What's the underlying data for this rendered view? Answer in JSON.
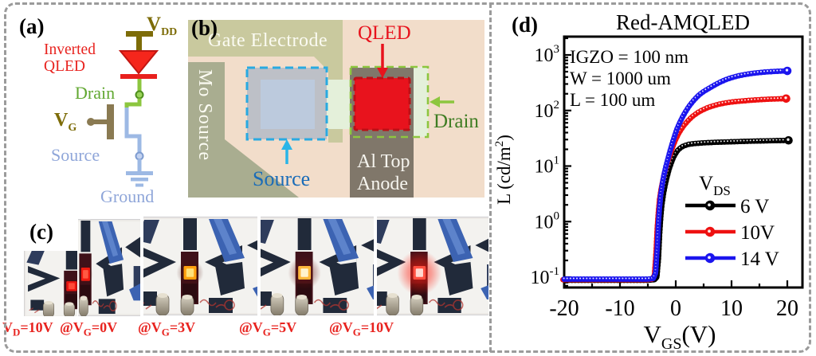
{
  "panels": {
    "a": {
      "label": "(a)",
      "caption_line1": "Inverted",
      "caption_line2": "QLED",
      "vdd_main": "V",
      "vdd_sub": "DD",
      "drain_label": "Drain",
      "vg_main": "V",
      "vg_sub": "G",
      "source_label": "Source",
      "ground_label": "Ground"
    },
    "b": {
      "label": "(b)",
      "gate_electrode": "Gate Electrode",
      "mo_source": "Mo Source",
      "source_label": "Source",
      "qled_label": "QLED",
      "drain_label": "Drain",
      "anode_line1": "Al Top",
      "anode_line2": "Anode"
    },
    "c": {
      "label": "(c)",
      "captions": [
        {
          "x": 3,
          "pre": "V",
          "sub": "D",
          "post": "=10V",
          "text": "V_D=10V"
        },
        {
          "x": 75,
          "pre": "@V",
          "sub": "G",
          "post": "=0V",
          "text": "@V_G=0V"
        },
        {
          "x": 173,
          "pre": "@V",
          "sub": "G",
          "post": "=3V",
          "text": "@V_G=3V"
        },
        {
          "x": 300,
          "pre": "@V",
          "sub": "G",
          "post": "=5V",
          "text": "@V_G=5V"
        },
        {
          "x": 413,
          "pre": "@V",
          "sub": "G",
          "post": "=10V",
          "text": "@V_G=10V"
        }
      ],
      "photos": [
        {
          "name": "device-vg0-overview",
          "led": {
            "core": "#e81410",
            "bright": "#ff4a38",
            "halo": "#500a06",
            "haloR": 7,
            "haloOp": 0.45
          }
        },
        {
          "name": "device-vg0",
          "led": {
            "core": "#f01b10",
            "bright": "#ff5a42",
            "halo": "#4a0d08",
            "haloR": 7,
            "haloOp": 0.4
          }
        },
        {
          "name": "device-vg3",
          "led": {
            "core": "#ffa00e",
            "bright": "#ffe27a",
            "halo": "#4c0f06",
            "haloR": 9,
            "haloOp": 0.55
          }
        },
        {
          "name": "device-vg5",
          "led": {
            "core": "#ffb73c",
            "bright": "#fff3cf",
            "halo": "#6b1410",
            "haloR": 11,
            "haloOp": 0.6
          }
        },
        {
          "name": "device-vg10",
          "led": {
            "core": "#ff5040",
            "bright": "#ffd9d0",
            "halo": "#ff1d0e",
            "haloR": 15,
            "haloOp": 0.7
          }
        }
      ]
    },
    "d": {
      "label": "(d)"
    }
  },
  "colors": {
    "accent_red": "#e8231f",
    "olive": "#7d6c08",
    "gate_bar_olive": "#8a7a52",
    "wire_green": "#8cc63f",
    "drain_green_text": "#62a832",
    "light_blue_wire": "#9db9e4",
    "light_blue_text": "#8fa6d9",
    "micrograph_bg": "#f2ddca",
    "micrograph_olive": "#c9c99e",
    "micrograph_mo": "#a9ad90",
    "cyan_dash": "#29aae1",
    "source_blue_text": "#1a6cb8",
    "qled_red": "#e8131d",
    "green_dash": "#8dc63f",
    "drain_b_text": "#3f7d23",
    "anode_brown": "#80776a",
    "border_gray": "#9b9b9b"
  },
  "chart_data": {
    "type": "line",
    "title": "Red-AMQLED",
    "xlabel": {
      "pre": "V",
      "sub": "GS",
      "post": "(V)",
      "text": "V_GS(V)"
    },
    "ylabel": {
      "pre": "L (cd/m",
      "sup": "2",
      "post": ")",
      "text": "L (cd/m^2)"
    },
    "x_axis": {
      "min": -20,
      "max": 22.7,
      "major_ticks": [
        -20,
        -10,
        0,
        10,
        20
      ],
      "minor_ticks": [
        -15,
        -5,
        5,
        15
      ]
    },
    "y_axis": {
      "log": true,
      "min_exp": -1.19,
      "max_exp": 3.33,
      "tick_exponents": [
        3,
        2,
        1,
        0,
        -1
      ],
      "tick_base": "10"
    },
    "annotations": [
      "IGZO = 100 nm",
      "W = 1000 um",
      "L = 100 um"
    ],
    "legend": {
      "title_pre": "V",
      "title_sub": "DS",
      "position": "inside-right"
    },
    "grid": false,
    "series": [
      {
        "name": "6 V",
        "vds": 6,
        "color": "#000000",
        "points": [
          [
            -20,
            0.088
          ],
          [
            -18,
            0.088
          ],
          [
            -16,
            0.088
          ],
          [
            -14,
            0.088
          ],
          [
            -12,
            0.088
          ],
          [
            -10,
            0.088
          ],
          [
            -8,
            0.088
          ],
          [
            -6,
            0.088
          ],
          [
            -5,
            0.088
          ],
          [
            -4,
            0.09
          ],
          [
            -3.6,
            0.1
          ],
          [
            -3.3,
            0.22
          ],
          [
            -3.1,
            0.6
          ],
          [
            -2.9,
            1.2
          ],
          [
            -2.7,
            2.0
          ],
          [
            -2.4,
            3.2
          ],
          [
            -2.1,
            4.6
          ],
          [
            -1.8,
            6.2
          ],
          [
            -1.4,
            8.8
          ],
          [
            -1,
            11.5
          ],
          [
            -0.6,
            14.5
          ],
          [
            -0.2,
            17
          ],
          [
            0.2,
            19.5
          ],
          [
            0.7,
            21.5
          ],
          [
            1.2,
            23
          ],
          [
            2,
            24.5
          ],
          [
            3,
            25.3
          ],
          [
            4,
            25.8
          ],
          [
            5,
            26.2
          ],
          [
            7,
            26.8
          ],
          [
            9,
            27.2
          ],
          [
            11,
            27.6
          ],
          [
            13,
            28
          ],
          [
            15,
            28.3
          ],
          [
            17,
            28.6
          ],
          [
            20,
            29
          ]
        ]
      },
      {
        "name": "10V",
        "vds": 10,
        "color": "#ee1111",
        "points": [
          [
            -20,
            0.09
          ],
          [
            -18,
            0.09
          ],
          [
            -16,
            0.09
          ],
          [
            -14,
            0.09
          ],
          [
            -12,
            0.09
          ],
          [
            -10,
            0.09
          ],
          [
            -8,
            0.09
          ],
          [
            -6,
            0.09
          ],
          [
            -5,
            0.09
          ],
          [
            -4,
            0.092
          ],
          [
            -3.6,
            0.11
          ],
          [
            -3.3,
            0.3
          ],
          [
            -3.1,
            0.8
          ],
          [
            -2.9,
            1.5
          ],
          [
            -2.7,
            2.5
          ],
          [
            -2.4,
            3.9
          ],
          [
            -2.1,
            5.5
          ],
          [
            -1.8,
            7.5
          ],
          [
            -1.4,
            10.5
          ],
          [
            -1,
            14
          ],
          [
            -0.6,
            18.5
          ],
          [
            -0.2,
            24
          ],
          [
            0.2,
            30
          ],
          [
            0.7,
            38
          ],
          [
            1.2,
            46
          ],
          [
            1.7,
            54
          ],
          [
            2.2,
            62
          ],
          [
            2.7,
            70
          ],
          [
            3.2,
            78
          ],
          [
            3.7,
            85
          ],
          [
            4.2,
            92
          ],
          [
            5,
            102
          ],
          [
            6,
            113
          ],
          [
            7,
            122
          ],
          [
            8,
            130
          ],
          [
            9,
            136
          ],
          [
            10,
            141
          ],
          [
            11,
            145
          ],
          [
            12,
            148
          ],
          [
            13,
            151
          ],
          [
            14,
            154
          ],
          [
            15,
            156
          ],
          [
            16,
            158
          ],
          [
            17,
            160
          ],
          [
            18,
            161
          ],
          [
            19,
            162.5
          ],
          [
            20,
            164
          ]
        ]
      },
      {
        "name": "14 V",
        "vds": 14,
        "color": "#1b15ee",
        "points": [
          [
            -20,
            0.092
          ],
          [
            -18,
            0.092
          ],
          [
            -16,
            0.092
          ],
          [
            -14,
            0.092
          ],
          [
            -12,
            0.092
          ],
          [
            -10,
            0.092
          ],
          [
            -8,
            0.092
          ],
          [
            -6,
            0.092
          ],
          [
            -5,
            0.092
          ],
          [
            -4,
            0.095
          ],
          [
            -3.6,
            0.12
          ],
          [
            -3.3,
            0.35
          ],
          [
            -3.1,
            0.95
          ],
          [
            -2.9,
            1.8
          ],
          [
            -2.7,
            3.0
          ],
          [
            -2.4,
            4.8
          ],
          [
            -2.1,
            7
          ],
          [
            -1.8,
            9.5
          ],
          [
            -1.4,
            13.5
          ],
          [
            -1,
            19
          ],
          [
            -0.6,
            26
          ],
          [
            -0.2,
            35
          ],
          [
            0.2,
            46
          ],
          [
            0.7,
            60
          ],
          [
            1.2,
            76
          ],
          [
            1.7,
            93
          ],
          [
            2.2,
            112
          ],
          [
            2.7,
            131
          ],
          [
            3.2,
            151
          ],
          [
            3.7,
            171
          ],
          [
            4.2,
            191
          ],
          [
            5,
            220
          ],
          [
            6,
            252
          ],
          [
            7,
            288
          ],
          [
            8,
            325
          ],
          [
            9,
            360
          ],
          [
            10,
            390
          ],
          [
            11,
            415
          ],
          [
            12,
            436
          ],
          [
            13,
            454
          ],
          [
            14,
            469
          ],
          [
            15,
            482
          ],
          [
            16,
            492
          ],
          [
            17,
            500
          ],
          [
            18,
            507
          ],
          [
            19,
            512
          ],
          [
            20,
            516
          ]
        ]
      }
    ]
  }
}
